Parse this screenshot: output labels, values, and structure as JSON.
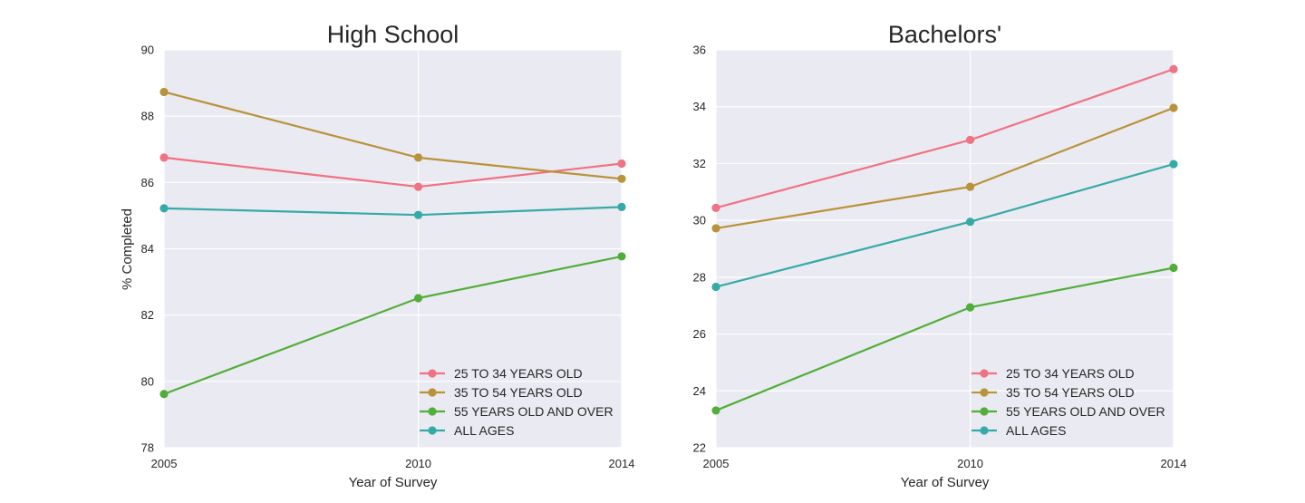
{
  "figure": {
    "ylabel_shared": "% Completed",
    "xlabel": "Year of Survey"
  },
  "chart_data": [
    {
      "type": "line",
      "title": "High School",
      "xlabel": "Year of Survey",
      "ylabel": "% Completed",
      "x": [
        2005,
        2010,
        2014
      ],
      "xticks": [
        "2005",
        "2010",
        "2014"
      ],
      "xlim": [
        2005,
        2014
      ],
      "ylim": [
        78,
        90
      ],
      "yticks": [
        "78",
        "80",
        "82",
        "84",
        "86",
        "88",
        "90"
      ],
      "grid": true,
      "legend_position": "lower-right",
      "series": [
        {
          "name": "25 TO 34 YEARS OLD",
          "color": "#f07283",
          "values": [
            86.75,
            85.87,
            86.57
          ]
        },
        {
          "name": "35 TO 54 YEARS OLD",
          "color": "#b9933a",
          "values": [
            88.73,
            86.75,
            86.11
          ]
        },
        {
          "name": "55 YEARS OLD AND OVER",
          "color": "#52ae3a",
          "values": [
            79.62,
            82.51,
            83.77
          ]
        },
        {
          "name": "ALL AGES",
          "color": "#36aaa6",
          "values": [
            85.22,
            85.02,
            85.26
          ]
        }
      ]
    },
    {
      "type": "line",
      "title": "Bachelors'",
      "xlabel": "Year of Survey",
      "ylabel": "",
      "x": [
        2005,
        2010,
        2014
      ],
      "xticks": [
        "2005",
        "2010",
        "2014"
      ],
      "xlim": [
        2005,
        2014
      ],
      "ylim": [
        22,
        36
      ],
      "yticks": [
        "22",
        "24",
        "26",
        "28",
        "30",
        "32",
        "34",
        "36"
      ],
      "grid": true,
      "legend_position": "lower-right",
      "series": [
        {
          "name": "25 TO 34 YEARS OLD",
          "color": "#f07283",
          "values": [
            30.44,
            32.83,
            35.32
          ]
        },
        {
          "name": "35 TO 54 YEARS OLD",
          "color": "#b9933a",
          "values": [
            29.72,
            31.18,
            33.96
          ]
        },
        {
          "name": "55 YEARS OLD AND OVER",
          "color": "#52ae3a",
          "values": [
            23.31,
            26.94,
            28.33
          ]
        },
        {
          "name": "ALL AGES",
          "color": "#36aaa6",
          "values": [
            27.66,
            29.95,
            31.98
          ]
        }
      ]
    }
  ]
}
